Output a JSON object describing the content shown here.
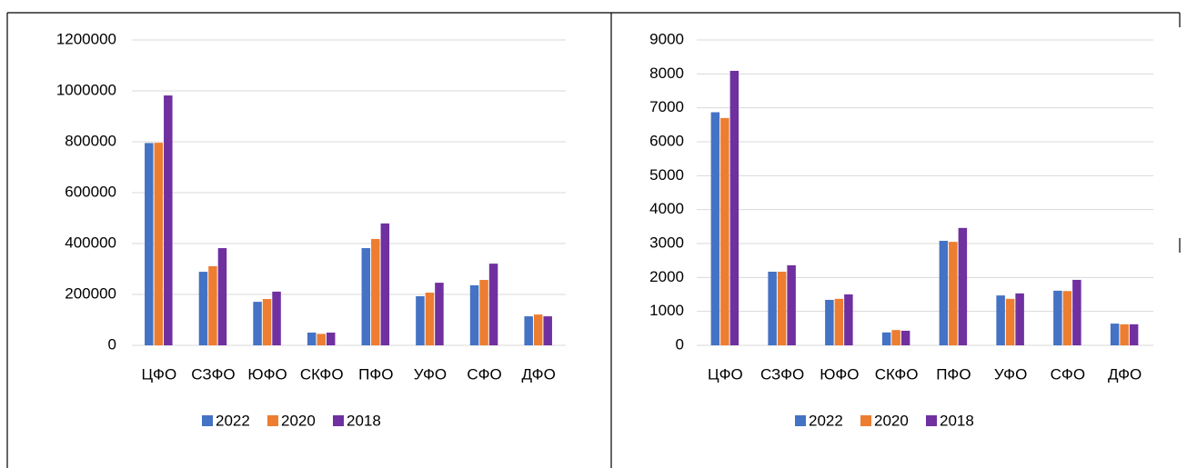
{
  "chart_data": [
    {
      "type": "bar",
      "categories": [
        "ЦФО",
        "СЗФО",
        "ЮФО",
        "СКФО",
        "ПФО",
        "УФО",
        "СФО",
        "ДФО"
      ],
      "series": [
        {
          "name": "2022",
          "color": "#4472c4",
          "values": [
            795000,
            289000,
            171000,
            50000,
            382000,
            193000,
            236000,
            114000
          ]
        },
        {
          "name": "2020",
          "color": "#ed7d31",
          "values": [
            796000,
            311000,
            182000,
            45000,
            418000,
            207000,
            257000,
            121000
          ]
        },
        {
          "name": "2018",
          "color": "#7030a0",
          "values": [
            982000,
            382000,
            211000,
            50000,
            479000,
            246000,
            321000,
            114000
          ]
        }
      ],
      "ylim": [
        0,
        1200000
      ],
      "yticks": [
        0,
        200000,
        400000,
        600000,
        800000,
        1000000,
        1200000
      ],
      "grid": true,
      "legend": "bottom"
    },
    {
      "type": "bar",
      "categories": [
        "ЦФО",
        "СЗФО",
        "ЮФО",
        "СКФО",
        "ПФО",
        "УФО",
        "СФО",
        "ДФО"
      ],
      "series": [
        {
          "name": "2022",
          "color": "#4472c4",
          "values": [
            6870,
            2170,
            1340,
            380,
            3080,
            1470,
            1610,
            640
          ]
        },
        {
          "name": "2020",
          "color": "#ed7d31",
          "values": [
            6700,
            2170,
            1370,
            450,
            3050,
            1370,
            1600,
            620
          ]
        },
        {
          "name": "2018",
          "color": "#7030a0",
          "values": [
            8090,
            2360,
            1500,
            430,
            3460,
            1530,
            1930,
            620
          ]
        }
      ],
      "ylim": [
        0,
        9000
      ],
      "yticks": [
        0,
        1000,
        2000,
        3000,
        4000,
        5000,
        6000,
        7000,
        8000,
        9000
      ],
      "grid": true,
      "legend": "bottom"
    }
  ]
}
